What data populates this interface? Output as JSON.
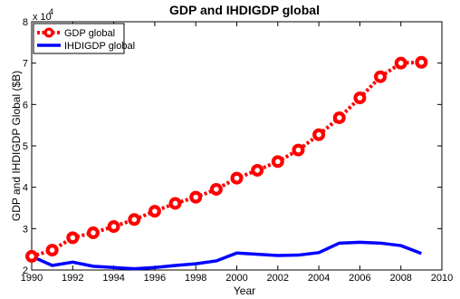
{
  "chart_data": {
    "type": "line",
    "title": "GDP and IHDIGDP global",
    "xlabel": "Year",
    "ylabel": "GDP and IHDIGDP Global ($B)",
    "y_exponent_label": "x 10",
    "y_exponent_power": "4",
    "xlim": [
      1990,
      2010
    ],
    "ylim": [
      20000,
      80000
    ],
    "x_ticks": [
      "1990",
      "1992",
      "1994",
      "1996",
      "1998",
      "2000",
      "2002",
      "2004",
      "2006",
      "2008",
      "2010"
    ],
    "y_ticks": [
      "2",
      "3",
      "4",
      "5",
      "6",
      "7",
      "8"
    ],
    "grid": false,
    "legend_position": "top-left",
    "x": [
      1990,
      1991,
      1992,
      1993,
      1994,
      1995,
      1996,
      1997,
      1998,
      1999,
      2000,
      2001,
      2002,
      2003,
      2004,
      2005,
      2006,
      2007,
      2008,
      2009
    ],
    "series": [
      {
        "name": "GDP global",
        "color": "#ff0000",
        "style": "dotted-circle-markers",
        "values": [
          23300,
          24800,
          27800,
          29000,
          30500,
          32200,
          34200,
          36100,
          37600,
          39500,
          42200,
          44100,
          46200,
          49000,
          52700,
          56800,
          61600,
          66700,
          70000,
          70200
        ]
      },
      {
        "name": "IHDIGDP global",
        "color": "#0000ff",
        "style": "solid",
        "values": [
          23300,
          21100,
          21900,
          20900,
          20600,
          20300,
          20600,
          21100,
          21500,
          22200,
          24100,
          23800,
          23500,
          23600,
          24200,
          26500,
          26700,
          26500,
          25900,
          24000
        ]
      }
    ]
  }
}
